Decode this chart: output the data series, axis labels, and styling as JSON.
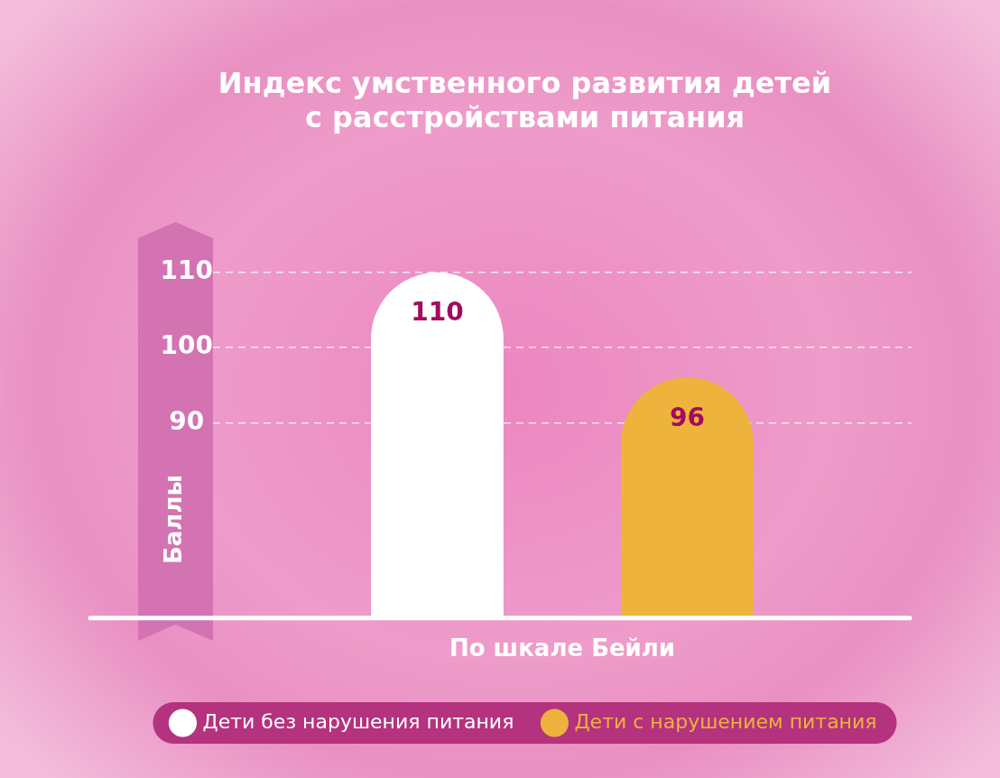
{
  "chart_data": {
    "type": "bar",
    "title": "Индекс умственного развития детей\nс расстройствами питания",
    "ylabel": "Баллы",
    "categories": [
      "По шкале Бейли"
    ],
    "series": [
      {
        "name": "Дети без нарушения питания",
        "color": "#ffffff",
        "values": [
          110
        ]
      },
      {
        "name": "Дети с нарушением питания",
        "color": "#edb33d",
        "values": [
          96
        ]
      }
    ],
    "ylim": [
      64,
      110
    ],
    "yticks": [
      90,
      100,
      110
    ],
    "grid": "y",
    "legend": "bottom",
    "data_labels": true
  }
}
